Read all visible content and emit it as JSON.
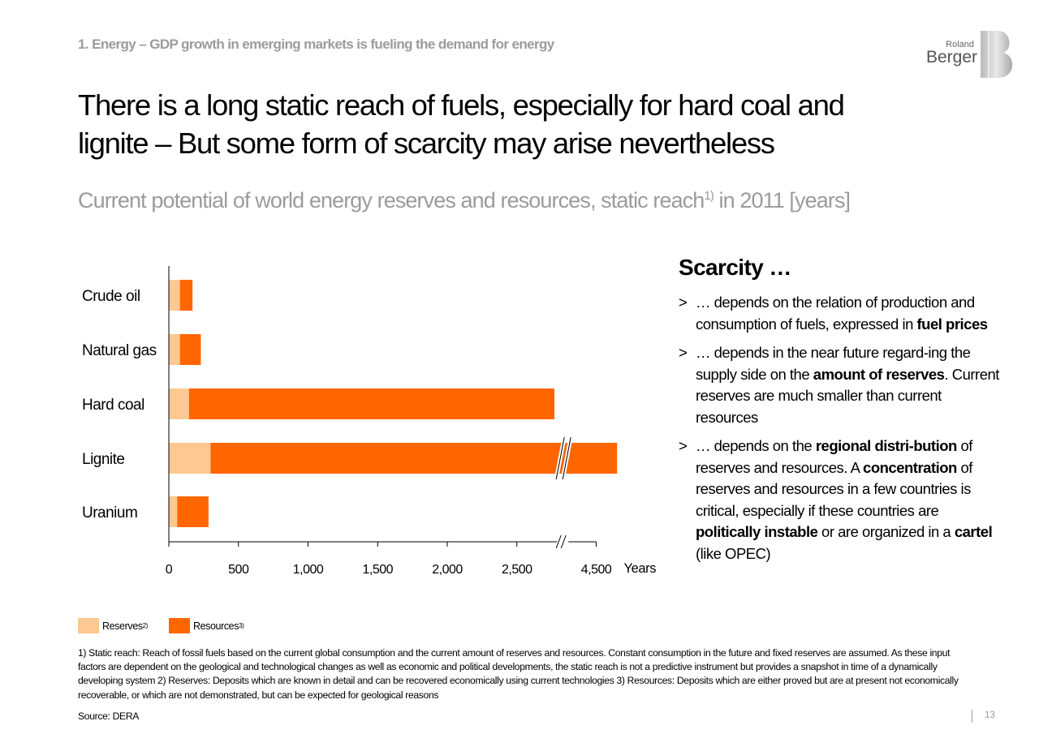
{
  "header": {
    "kicker": "1. Energy – GDP growth in emerging markets is fueling the demand for energy",
    "logo_text_top": "Roland",
    "logo_text_bottom": "Berger"
  },
  "title_lines": [
    "There is a long static reach of fuels, especially for hard coal and",
    "lignite – But some form of scarcity may arise nevertheless"
  ],
  "subtitle": {
    "text": "Current potential of world energy reserves and resources, static reach",
    "sup": "1)",
    "tail": " in 2011 [years]"
  },
  "chart_data": {
    "type": "bar",
    "orientation": "horizontal",
    "stacked": true,
    "categories": [
      "Crude oil",
      "Natural gas",
      "Hard coal",
      "Lignite",
      "Uranium"
    ],
    "series": [
      {
        "name": "Reserves",
        "values": [
          80,
          80,
          145,
          300,
          60
        ],
        "color": "#fdc891"
      },
      {
        "name": "Resources",
        "values": [
          90,
          150,
          2625,
          4350,
          225
        ],
        "color": "#ff6600"
      }
    ],
    "x_ticks": [
      "0",
      "500",
      "1,000",
      "1,500",
      "2,000",
      "2,500",
      "4,500"
    ],
    "x_tick_values": [
      0,
      500,
      1000,
      1500,
      2000,
      2500,
      4500
    ],
    "axis_break": [
      2800,
      4300
    ],
    "xlabel": "Years",
    "xlim": [
      0,
      4500
    ]
  },
  "legend": {
    "reserves_label": "Reserves",
    "reserves_sup": "2)",
    "resources_label": "Resources",
    "resources_sup": "3)"
  },
  "scarcity": {
    "heading": "Scarcity …",
    "bullet_marker": ">",
    "bullets": [
      [
        {
          "t": "… depends on the relation of production and consumption of fuels, expressed in "
        },
        {
          "t": "fuel prices",
          "b": true
        }
      ],
      [
        {
          "t": "… depends in the near future regard-ing the supply side on the "
        },
        {
          "t": "amount of reserves",
          "b": true
        },
        {
          "t": ". Current reserves are much smaller than current resources"
        }
      ],
      [
        {
          "t": "… depends on the "
        },
        {
          "t": "regional distri-bution",
          "b": true
        },
        {
          "t": " of reserves and resources. A "
        },
        {
          "t": "concentration",
          "b": true
        },
        {
          "t": " of reserves and resources in a few countries is critical, especially if these countries are "
        },
        {
          "t": "politically instable",
          "b": true
        },
        {
          "t": " or are organized in a "
        },
        {
          "t": "cartel",
          "b": true
        },
        {
          "t": " (like OPEC)"
        }
      ]
    ]
  },
  "footnote": "1) Static reach: Reach of fossil fuels based on the current global consumption and the current amount of reserves and resources. Constant consumption in the future and fixed reserves are assumed. As these input factors are dependent on the geological and technological changes as well as economic and political developments, the static reach is not a predictive instrument but provides a snapshot in time of a dynamically developing system  2) Reserves: Deposits which are known in detail and can be recovered economically using current technologies 3) Resources: Deposits which are either proved but are at present not economically recoverable, or which are not demonstrated, but can be expected for geological reasons",
  "source": "Source: DERA",
  "page_number": "13"
}
